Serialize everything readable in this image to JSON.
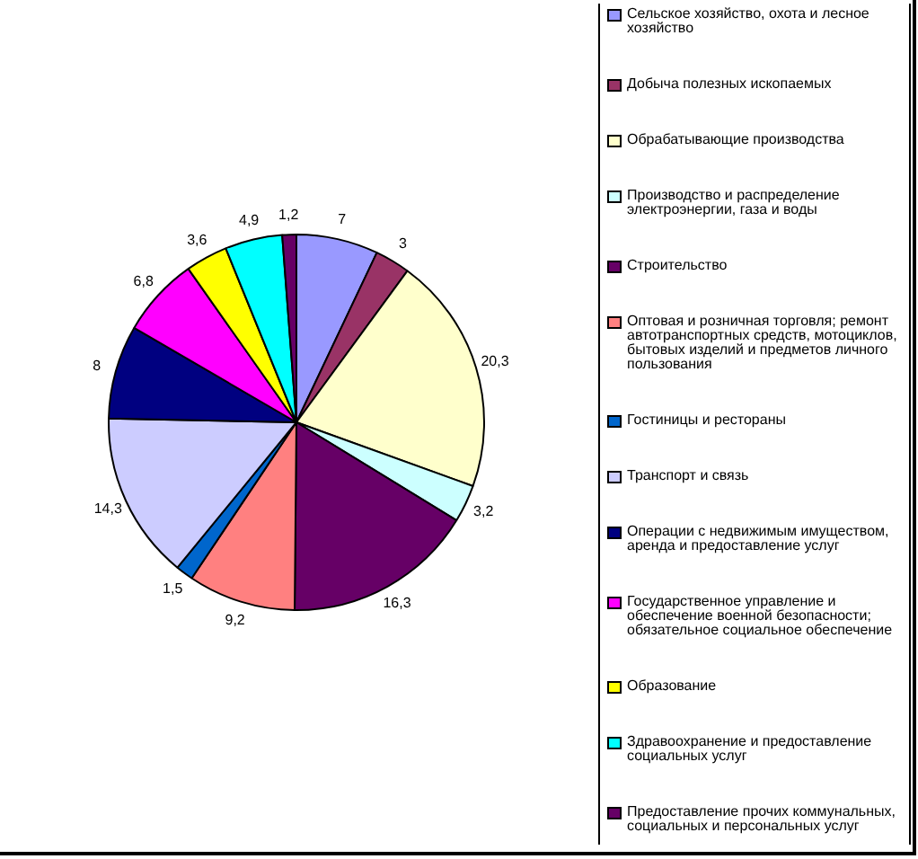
{
  "chart_data": {
    "type": "pie",
    "categories": [
      "Сельское хозяйство, охота и лесное хозяйство",
      "Добыча полезных ископаемых",
      "Обрабатывающие производства",
      "Производство и распределение электроэнергии, газа и воды",
      "Строительство",
      "Оптовая и розничная торговля; ремонт автотранспортных средств, мотоциклов, бытовых изделий и предметов личного пользования",
      "Гостиницы и рестораны",
      "Транспорт и связь",
      "Операции с недвижимым имуществом, аренда и предоставление услуг",
      "Государственное управление и обеспечение военной безопасности; обязательное социальное обеспечение",
      "Образование",
      "Здравоохранение и предоставление социальных услуг",
      "Предоставление прочих коммунальных, социальных и персональных услуг"
    ],
    "values": [
      7,
      3,
      20.3,
      3.2,
      16.3,
      9.2,
      1.5,
      14.3,
      8,
      6.8,
      3.6,
      4.9,
      1.2
    ],
    "value_labels": [
      "7",
      "3",
      "20,3",
      "3,2",
      "16,3",
      "9,2",
      "1,5",
      "14,3",
      "8",
      "6,8",
      "3,6",
      "4,9",
      "1,2"
    ],
    "colors": [
      "#9999ff",
      "#993366",
      "#ffffcc",
      "#ccffff",
      "#660066",
      "#ff8080",
      "#0066cc",
      "#ccccff",
      "#000080",
      "#ff00ff",
      "#ffff00",
      "#00ffff",
      "#660066"
    ],
    "legend": "right"
  }
}
